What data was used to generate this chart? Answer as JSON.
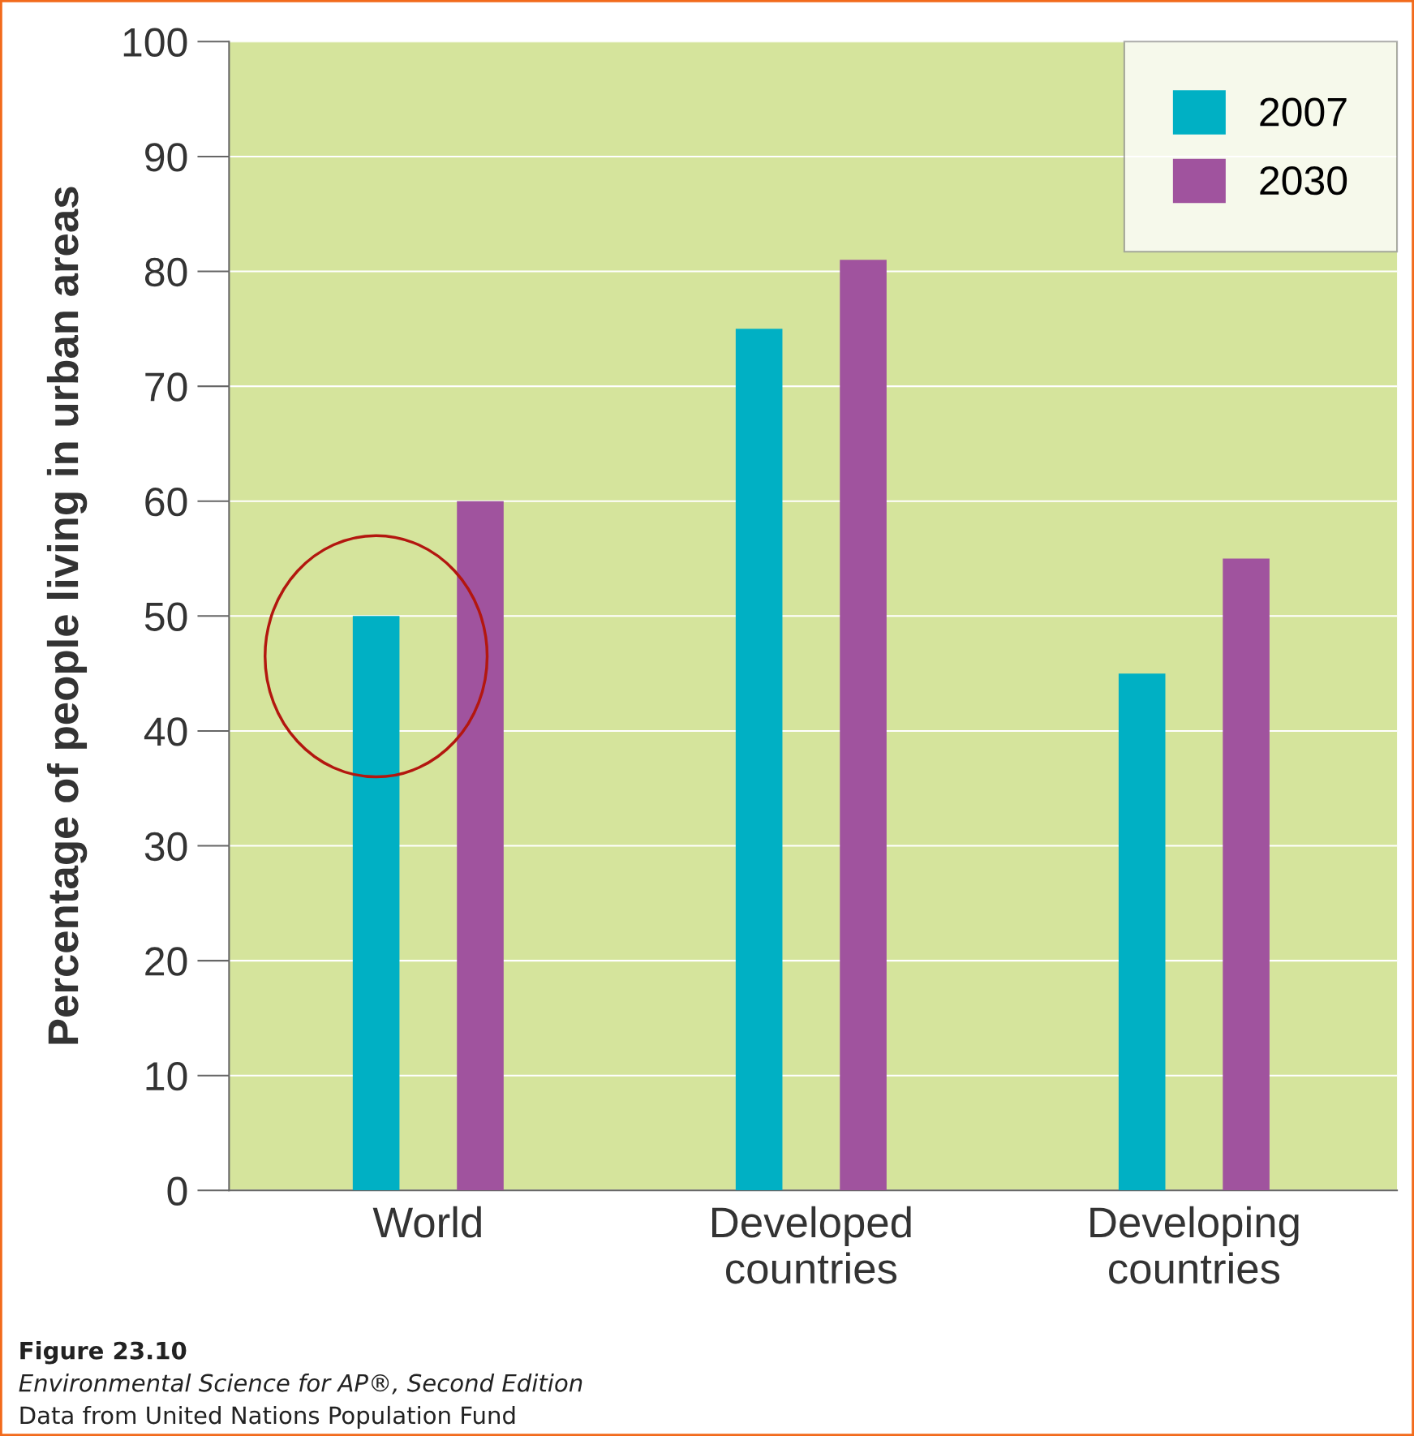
{
  "chart_data": {
    "type": "bar",
    "ylabel": "Percentage of people living in urban areas",
    "categories": [
      "World",
      "Developed\ncountries",
      "Developing\ncountries"
    ],
    "series": [
      {
        "name": "2007",
        "color": "#00b0c4",
        "values": [
          50,
          75,
          45
        ]
      },
      {
        "name": "2030",
        "color": "#a0539e",
        "values": [
          60,
          81,
          55
        ]
      }
    ],
    "ylim": [
      0,
      100
    ],
    "yticks": [
      0,
      10,
      20,
      30,
      40,
      50,
      60,
      70,
      80,
      90,
      100
    ],
    "grid": "y",
    "legend": "top right",
    "annotations": [
      "Figure 23.10",
      "Environmental Science for AP®, Second Edition",
      "Data from United Nations Population Fund"
    ]
  }
}
